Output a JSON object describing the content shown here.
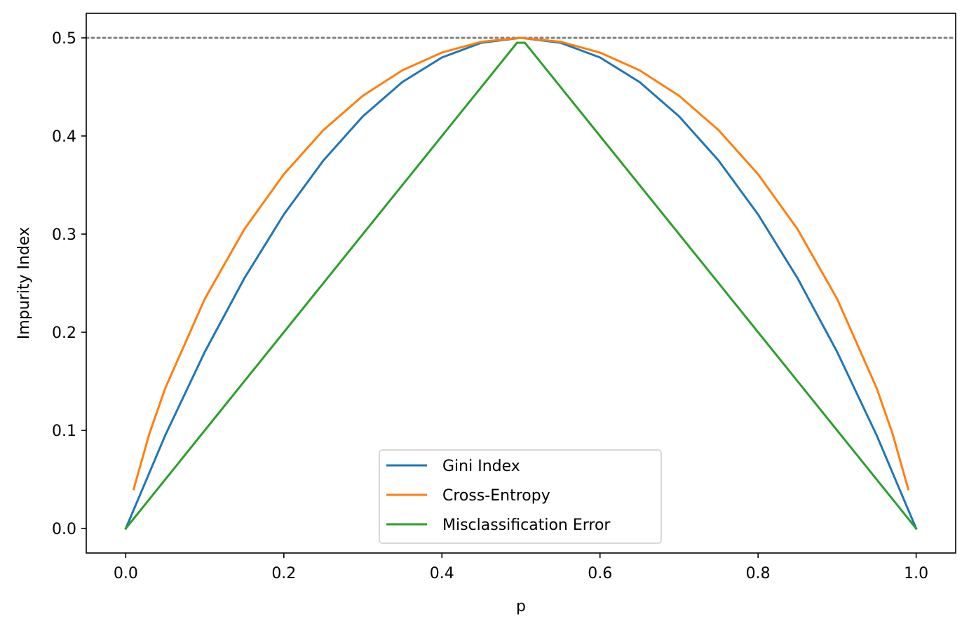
{
  "chart_data": {
    "type": "line",
    "xlabel": "p",
    "ylabel": "Impurity Index",
    "xlim": [
      -0.05,
      1.05
    ],
    "ylim": [
      -0.025,
      0.525
    ],
    "xticks": [
      "0.0",
      "0.2",
      "0.4",
      "0.6",
      "0.8",
      "1.0"
    ],
    "yticks": [
      "0.0",
      "0.1",
      "0.2",
      "0.3",
      "0.4",
      "0.5"
    ],
    "grid": false,
    "legend_position": "lower center",
    "reference_line": {
      "y": 0.5,
      "style": "dotted",
      "color": "#808080"
    },
    "series": [
      {
        "name": "Gini Index",
        "color": "#1f77b4",
        "x": [
          0.0,
          0.05,
          0.1,
          0.15,
          0.2,
          0.25,
          0.3,
          0.35,
          0.4,
          0.45,
          0.5,
          0.55,
          0.6,
          0.65,
          0.7,
          0.75,
          0.8,
          0.85,
          0.9,
          0.95,
          1.0
        ],
        "values": [
          0.0,
          0.095,
          0.18,
          0.255,
          0.32,
          0.375,
          0.42,
          0.455,
          0.48,
          0.495,
          0.5,
          0.495,
          0.48,
          0.455,
          0.42,
          0.375,
          0.32,
          0.255,
          0.18,
          0.095,
          0.0
        ]
      },
      {
        "name": "Cross-Entropy",
        "color": "#ff7f0e",
        "x": [
          0.01,
          0.03,
          0.05,
          0.1,
          0.15,
          0.2,
          0.25,
          0.3,
          0.35,
          0.4,
          0.45,
          0.5,
          0.55,
          0.6,
          0.65,
          0.7,
          0.75,
          0.8,
          0.85,
          0.9,
          0.95,
          0.97,
          0.99
        ],
        "values": [
          0.04,
          0.097,
          0.143,
          0.234,
          0.305,
          0.361,
          0.406,
          0.441,
          0.467,
          0.485,
          0.496,
          0.5,
          0.496,
          0.485,
          0.467,
          0.441,
          0.406,
          0.361,
          0.305,
          0.234,
          0.143,
          0.097,
          0.04
        ]
      },
      {
        "name": "Misclassification Error",
        "color": "#2ca02c",
        "x": [
          0.0,
          0.1,
          0.2,
          0.3,
          0.4,
          0.495,
          0.505,
          0.6,
          0.7,
          0.8,
          0.9,
          1.0
        ],
        "values": [
          0.0,
          0.1,
          0.2,
          0.3,
          0.4,
          0.495,
          0.495,
          0.4,
          0.3,
          0.2,
          0.1,
          0.0
        ]
      }
    ]
  }
}
